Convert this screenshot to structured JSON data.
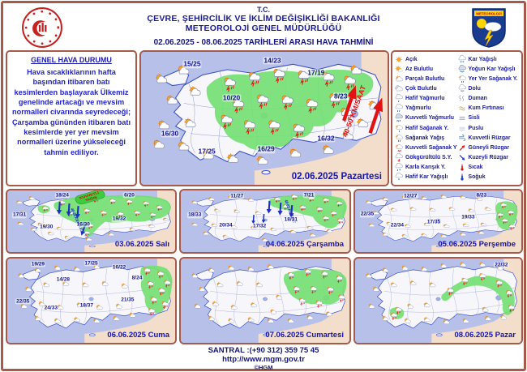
{
  "header": {
    "line1": "T.C.",
    "line2": "ÇEVRE, ŞEHİRCİLİK VE İKLİM DEĞİŞİKLİĞİ BAKANLIĞI",
    "line3": "METEOROLOJİ GENEL MÜDÜRLÜĞÜ",
    "date_range": "02.06.2025  -  08.06.2025   TARİHLERİ ARASI HAVA TAHMİNİ",
    "logo_text": "METEOROLOJİ"
  },
  "general": {
    "title": "GENEL HAVA DURUMU",
    "text": "Hava sıcaklıklarının hafta başından itibaren batı kesimlerden başlayarak Ülkemiz genelinde artacağı ve mevsim normalleri civarında seyredeceği; Çarşamba gününden itibaren batı kesimlerde yer yer mevsim normalleri üzerine yükseleceği tahmin ediliyor."
  },
  "legend": {
    "left": [
      {
        "label": "Açık",
        "icon": "sun"
      },
      {
        "label": "Az Bulutlu",
        "icon": "sun-small-cloud"
      },
      {
        "label": "Parçalı Bulutlu",
        "icon": "sun-cloud"
      },
      {
        "label": "Çok Bulutlu",
        "icon": "clouds"
      },
      {
        "label": "Hafif Yağmurlu",
        "icon": "cloud-drop"
      },
      {
        "label": "Yağmurlu",
        "icon": "cloud-drops"
      },
      {
        "label": "Kuvvetli Yağmurlu",
        "icon": "cloud-heavy-rain"
      },
      {
        "label": "Hafif Sağanak Y.",
        "icon": "sun-cloud-drop"
      },
      {
        "label": "Sağanak Yağış",
        "icon": "sun-cloud-drops"
      },
      {
        "label": "Kuvvetli Sağanak Y",
        "icon": "sun-cloud-heavy-rain"
      },
      {
        "label": "Gökgürültülü S.Y.",
        "icon": "cloud-lightning"
      },
      {
        "label": "Karla Karışık Y.",
        "icon": "cloud-rain-snow"
      },
      {
        "label": "Hafif Kar Yağışlı",
        "icon": "cloud-snow-light"
      }
    ],
    "right": [
      {
        "label": "Kar Yağışlı",
        "icon": "cloud-snow"
      },
      {
        "label": "Yoğun Kar Yağışlı",
        "icon": "cloud-snow-heavy"
      },
      {
        "label": "Yer Yer Sağanak Y.",
        "icon": "sun-cloud-drops"
      },
      {
        "label": "Dolu",
        "icon": "cloud-hail"
      },
      {
        "label": "Duman",
        "icon": "smoke"
      },
      {
        "label": "Kum Fırtınası",
        "icon": "sand-storm"
      },
      {
        "label": "Sisli",
        "icon": "fog"
      },
      {
        "label": "Puslu",
        "icon": "haze"
      },
      {
        "label": "Kuvvetli Rüzgar",
        "icon": "strong-wind"
      },
      {
        "label": "Güneyli Rüzgar",
        "icon": "south-wind-arrow"
      },
      {
        "label": "Kuzeyli Rüzgar",
        "icon": "north-wind-arrow"
      },
      {
        "label": "Sıcak",
        "icon": "hot-thermometer"
      },
      {
        "label": "Soğuk",
        "icon": "cold-thermometer"
      }
    ]
  },
  "maps": {
    "monday": {
      "date_label": "02.06.2025 Pazartesi",
      "wind_label": "40-50 KM/SAAT",
      "temps": [
        "15/25",
        "14/23",
        "17/19",
        "10/20",
        "8/23",
        "16/30",
        "17/25",
        "16/29",
        "16/32"
      ]
    },
    "tuesday": {
      "date_label": "03.06.2025 Salı",
      "wind_label": "40-60 KM/SAAT",
      "banner_line1": "KUVVETLİ",
      "banner_line2": "YAĞIŞ",
      "temps": [
        "18/24",
        "6/20",
        "17/31",
        "19/30",
        "16/30",
        "19/32"
      ]
    },
    "wednesday": {
      "date_label": "04.06.2025 Çarşamba",
      "wind_label": "40-60 KM/SAAT",
      "temps": [
        "11/27",
        "7/21",
        "18/33",
        "20/34",
        "17/32",
        "18/31"
      ]
    },
    "thursday": {
      "date_label": "05.06.2025 Perşembe",
      "temps": [
        "12/27",
        "8/23",
        "22/35",
        "22/34",
        "17/35",
        "19/33"
      ]
    },
    "friday": {
      "date_label": "06.06.2025 Cuma",
      "temps": [
        "19/29",
        "17/25",
        "16/22",
        "14/28",
        "8/24",
        "22/35",
        "24/33",
        "18/37",
        "21/35"
      ]
    },
    "saturday": {
      "date_label": "07.06.2025 Cumartesi",
      "temps": []
    },
    "sunday": {
      "date_label": "08.06.2025 Pazar",
      "temps": [
        "22/32"
      ]
    }
  },
  "footer": {
    "phone": "SANTRAL :(+90 312) 359 75 45",
    "url": "http://www.mgm.gov.tr",
    "copyright": "©HGM"
  },
  "colors": {
    "frame": "#a85a4a",
    "sea": "#b7c0e8",
    "precip_green": "#74df74",
    "navy_text": "#1b1b9e",
    "warning_red": "#e31212",
    "wind_blue": "#1b2fc4"
  }
}
